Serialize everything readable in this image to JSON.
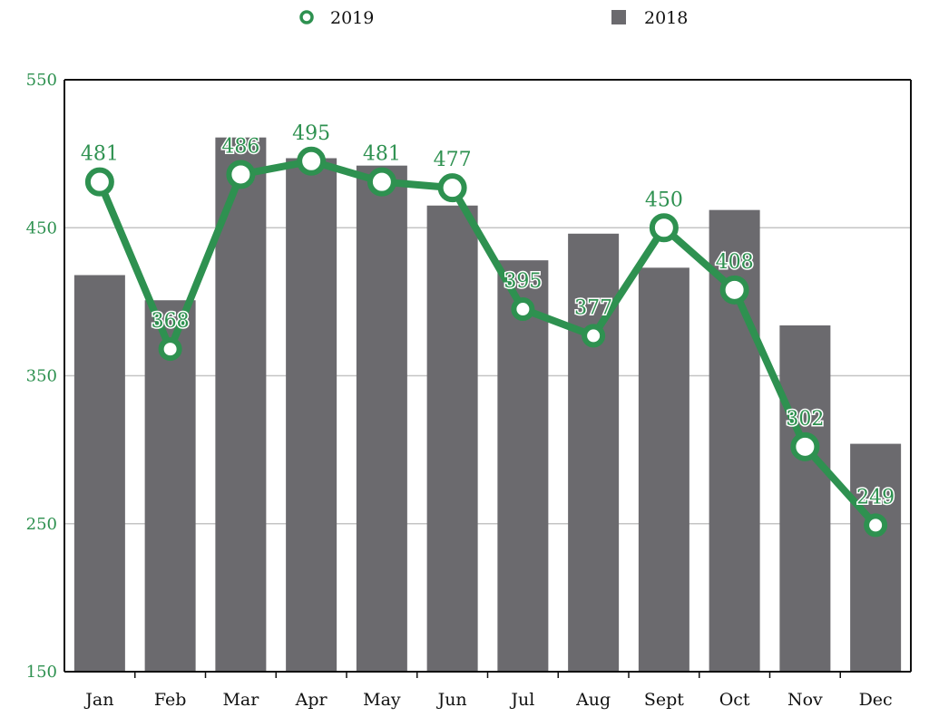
{
  "chart_data": {
    "type": "bar",
    "categories": [
      "Jan",
      "Feb",
      "Mar",
      "Apr",
      "May",
      "Jun",
      "Jul",
      "Aug",
      "Sept",
      "Oct",
      "Nov",
      "Dec"
    ],
    "series": [
      {
        "name": "2018",
        "type": "bar",
        "color": "#6b6a6e",
        "values": [
          418,
          401,
          511,
          497,
          492,
          465,
          428,
          446,
          423,
          462,
          384,
          304
        ]
      },
      {
        "name": "2019",
        "type": "line",
        "color": "#2e9150",
        "values": [
          481,
          368,
          486,
          495,
          481,
          477,
          395,
          377,
          450,
          408,
          302,
          249
        ]
      }
    ],
    "ylim": [
      150,
      550
    ],
    "yticks": [
      150,
      250,
      350,
      450,
      550
    ],
    "ytick_color": "#2e9150",
    "grid": true,
    "legend_placement": "top",
    "title": "",
    "xlabel": "",
    "ylabel": ""
  }
}
